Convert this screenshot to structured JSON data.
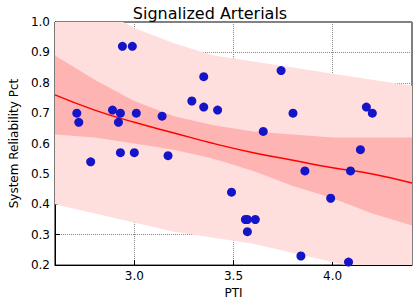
{
  "chart_data": {
    "type": "scatter",
    "title": "Signalized Arterials",
    "x_label": "PTI",
    "y_label": "System Reliability Pct",
    "xlim": [
      2.6,
      4.4
    ],
    "xticks": [
      {
        "value": 3,
        "label": "3.0"
      },
      3.5,
      {
        "value": 4,
        "label": "4.0"
      }
    ],
    "ylim": [
      0.2,
      1
    ],
    "yticks": [
      0.2,
      0.3,
      0.4,
      0.5,
      0.6,
      0.7,
      0.8,
      0.9,
      {
        "value": 1,
        "label": "1.0"
      }
    ],
    "grid": true,
    "series": [
      {
        "type": "band",
        "color": "#ffdede",
        "x": [
          2.6,
          2.8,
          3.0,
          3.2,
          3.4,
          3.6,
          3.8,
          4.0,
          4.2,
          4.4
        ],
        "lower": [
          0.4,
          0.37,
          0.34,
          0.31,
          0.29,
          0.27,
          0.24,
          0.21,
          0.18,
          0.15
        ],
        "upper": [
          1.12,
          1.05,
          0.98,
          0.93,
          0.89,
          0.87,
          0.85,
          0.83,
          0.81,
          0.79
        ]
      },
      {
        "type": "band",
        "color": "#ffb4b4",
        "x": [
          2.6,
          2.8,
          3.0,
          3.2,
          3.4,
          3.6,
          3.8,
          4.0,
          4.2,
          4.4
        ],
        "lower": [
          0.63,
          0.62,
          0.6,
          0.58,
          0.55,
          0.51,
          0.46,
          0.42,
          0.37,
          0.33
        ],
        "upper": [
          0.89,
          0.81,
          0.74,
          0.69,
          0.66,
          0.64,
          0.63,
          0.62,
          0.62,
          0.62
        ]
      },
      {
        "type": "line",
        "color": "#ff0000",
        "line_style": "solid",
        "x": [
          2.6,
          2.8,
          3.0,
          3.2,
          3.4,
          3.6,
          3.8,
          4.0,
          4.2,
          4.4
        ],
        "values": [
          0.76,
          0.71,
          0.67,
          0.635,
          0.6,
          0.57,
          0.545,
          0.52,
          0.5,
          0.47
        ]
      },
      {
        "type": "scatter",
        "color": "#1414c8",
        "marker": "circle",
        "x": [
          2.71,
          2.72,
          2.78,
          2.89,
          2.92,
          2.93,
          2.93,
          2.94,
          2.99,
          3.0,
          3.01,
          3.14,
          3.17,
          3.29,
          3.35,
          3.35,
          3.42,
          3.49,
          3.56,
          3.57,
          3.57,
          3.61,
          3.65,
          3.74,
          3.8,
          3.84,
          3.86,
          3.99,
          4.08,
          4.09,
          4.14,
          4.17,
          4.2
        ],
        "values": [
          0.7,
          0.67,
          0.54,
          0.71,
          0.67,
          0.7,
          0.57,
          0.92,
          0.92,
          0.57,
          0.7,
          0.69,
          0.56,
          0.74,
          0.72,
          0.82,
          0.71,
          0.44,
          0.35,
          0.31,
          0.35,
          0.35,
          0.64,
          0.84,
          0.7,
          0.23,
          0.51,
          0.42,
          0.21,
          0.51,
          0.58,
          0.72,
          0.7
        ]
      }
    ]
  }
}
